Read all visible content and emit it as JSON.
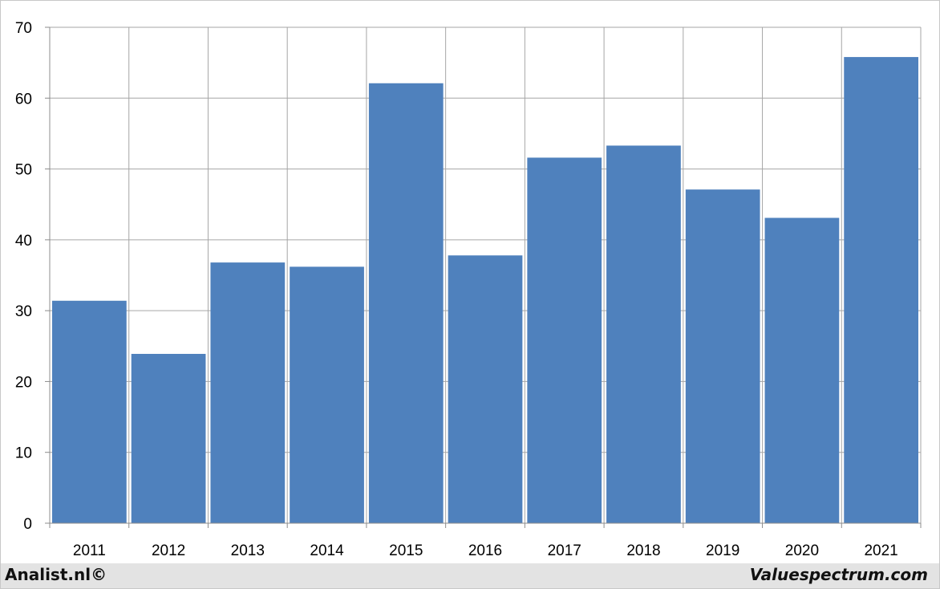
{
  "chart_data": {
    "type": "bar",
    "categories": [
      "2011",
      "2012",
      "2013",
      "2014",
      "2015",
      "2016",
      "2017",
      "2018",
      "2019",
      "2020",
      "2021"
    ],
    "values": [
      31.4,
      23.9,
      36.8,
      36.2,
      62.1,
      37.8,
      51.6,
      53.3,
      47.1,
      43.1,
      65.8
    ],
    "ylim": [
      0,
      70
    ],
    "yticks": [
      0,
      10,
      20,
      30,
      40,
      50,
      60,
      70
    ],
    "grid": true,
    "bar_color": "#4f81bd",
    "grid_color": "#a6a6a6"
  },
  "footer": {
    "left_text": "Analist.nl©",
    "right_text": "Valuespectrum.com"
  }
}
